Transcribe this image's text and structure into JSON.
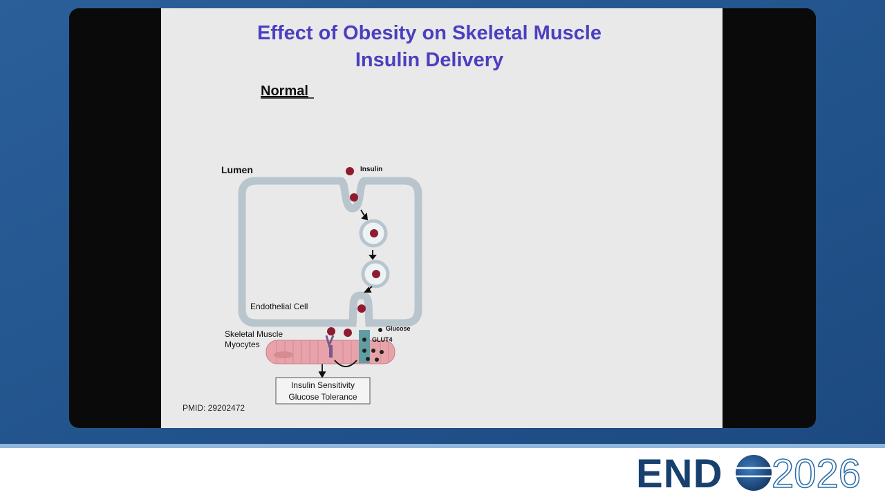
{
  "slide": {
    "title_lines": [
      "Effect of Obesity on Skeletal Muscle",
      "Insulin Delivery"
    ],
    "subtitle": "Normal",
    "citation": "PMID: 29202472"
  },
  "diagram": {
    "lumen": "Lumen",
    "insulin": "Insulin",
    "endothelial_cell": "Endothelial Cell",
    "glucose": "Glucose",
    "glut4": "GLUT4",
    "muscle_lines": [
      "Skeletal Muscle",
      "Myocytes"
    ],
    "outcome_lines": [
      "Insulin Sensitivity",
      "Glucose Tolerance"
    ]
  },
  "logo": {
    "text": "END",
    "year": "2026"
  }
}
